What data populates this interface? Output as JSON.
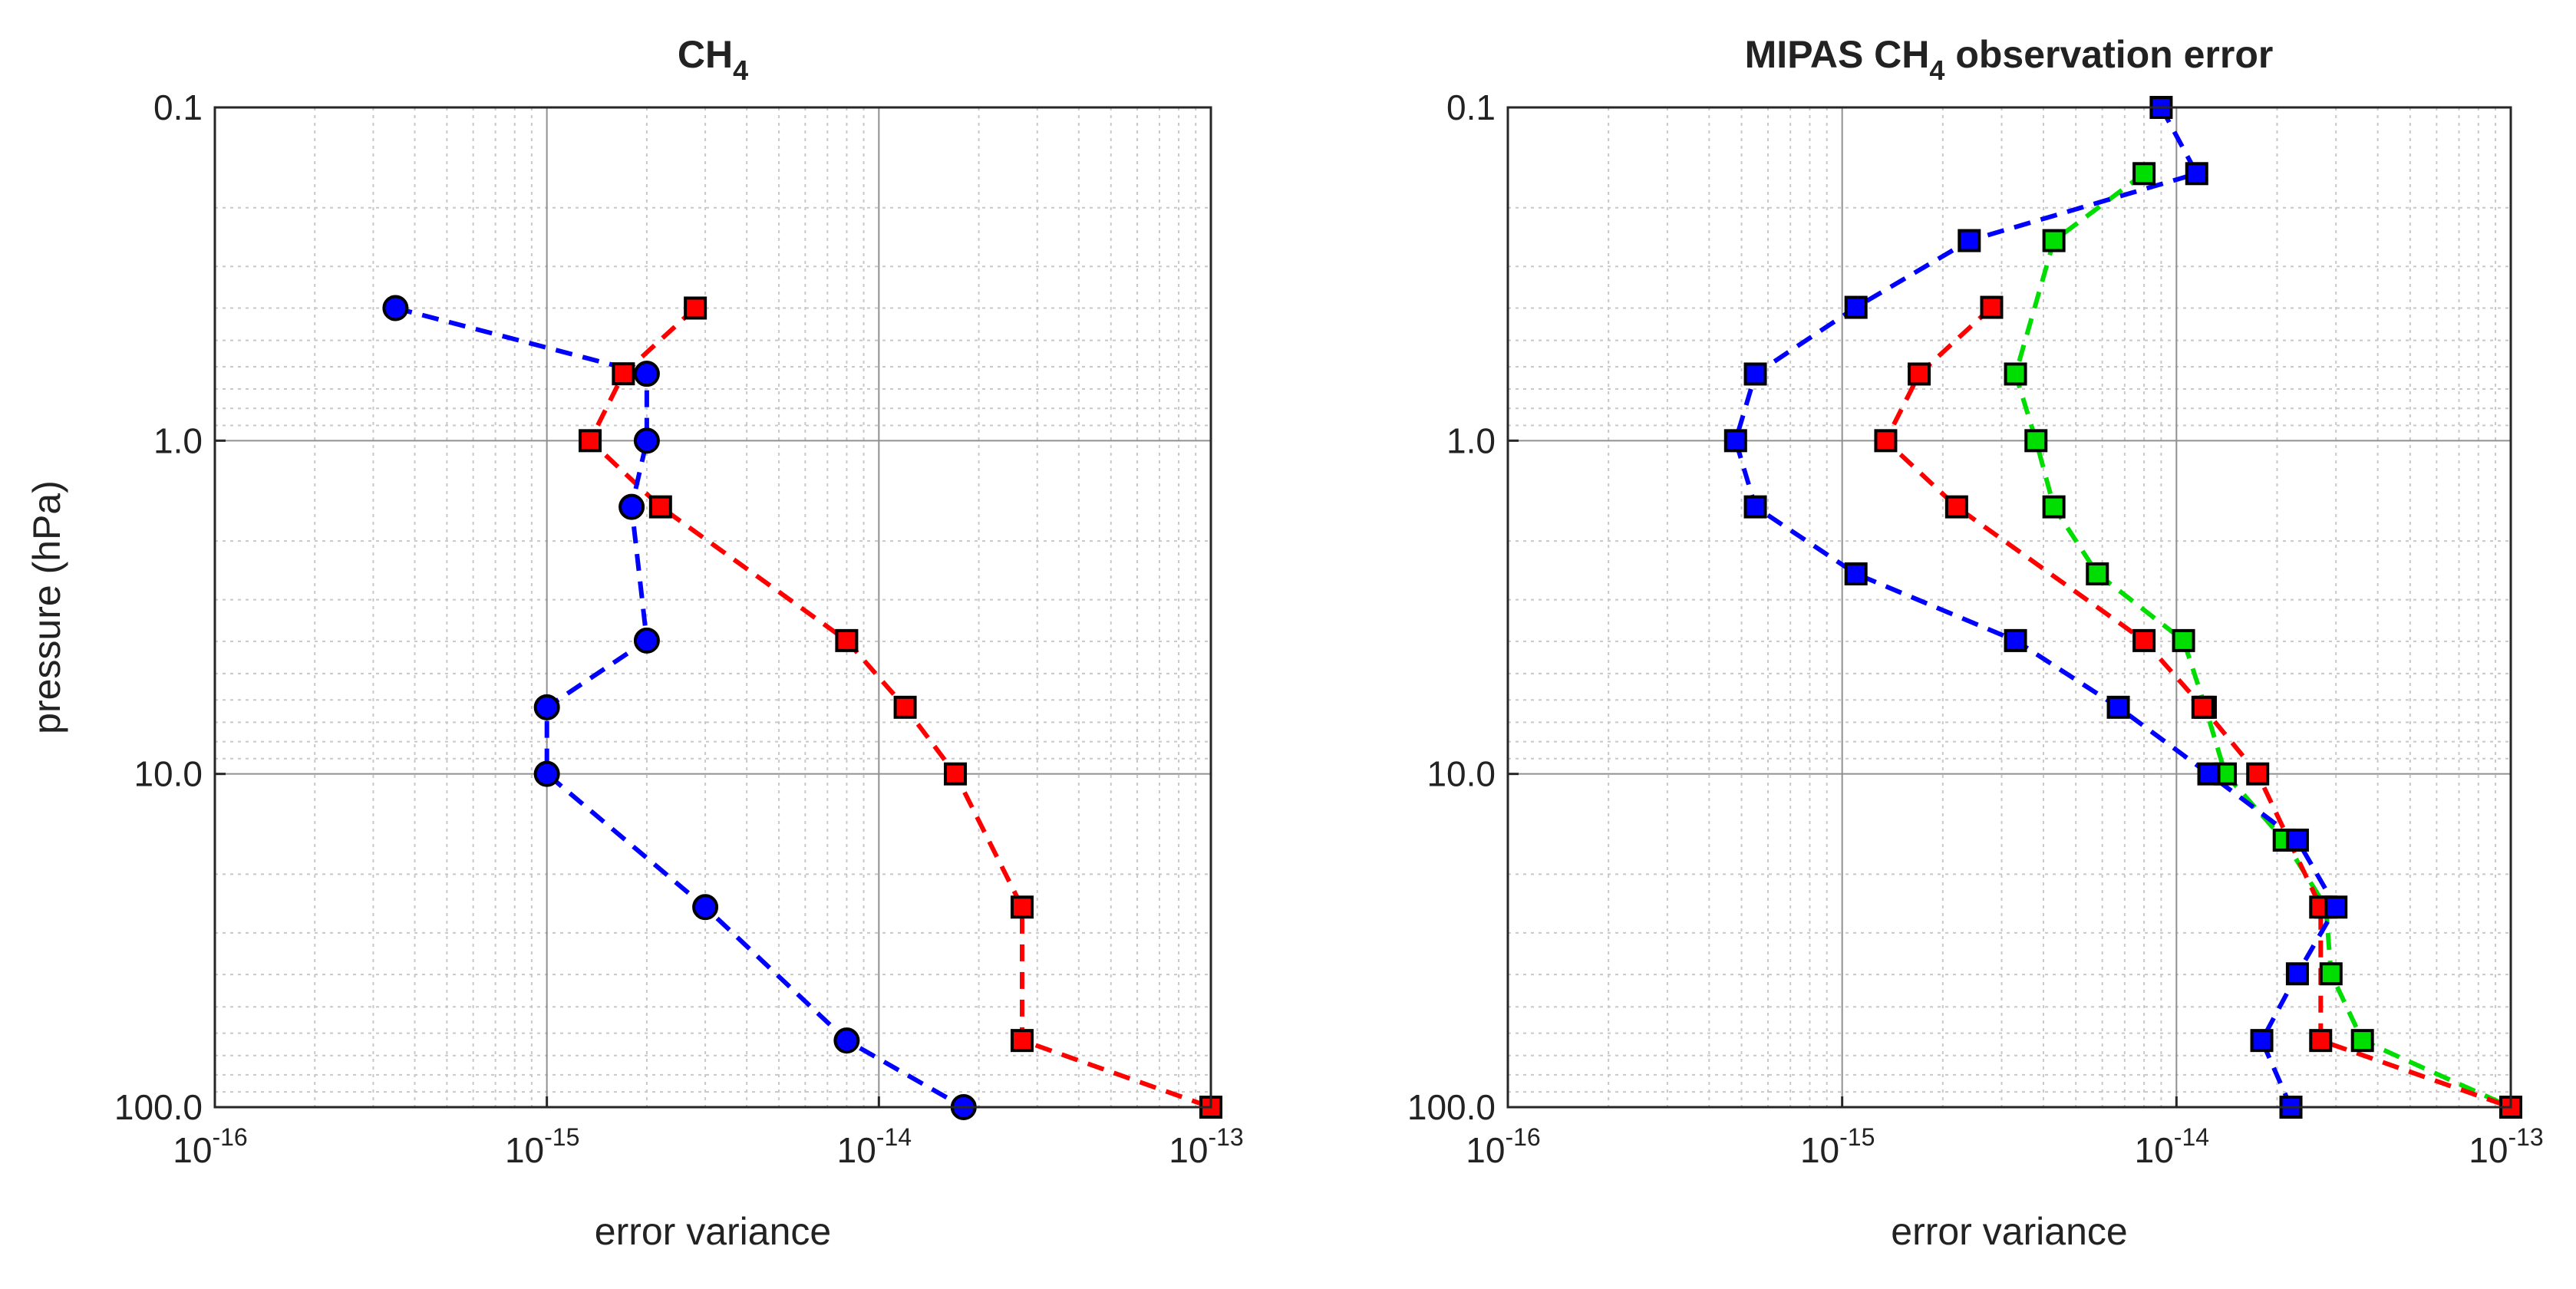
{
  "chart_data": [
    {
      "type": "line",
      "title": "CH",
      "title_sub": "4",
      "xlabel": "error variance",
      "ylabel": "pressure (hPa)",
      "x_scale": "log",
      "y_scale": "log",
      "y_reversed": true,
      "xlim": [
        1e-16,
        1e-13
      ],
      "ylim": [
        0.1,
        100
      ],
      "x_ticks": [
        {
          "value": 1e-16,
          "base": "10",
          "exp": "-16"
        },
        {
          "value": 1e-15,
          "base": "10",
          "exp": "-15"
        },
        {
          "value": 1e-14,
          "base": "10",
          "exp": "-14"
        },
        {
          "value": 1e-13,
          "base": "10",
          "exp": "-13"
        }
      ],
      "y_ticks": [
        {
          "value": 0.1,
          "label": "0.1"
        },
        {
          "value": 1,
          "label": "1.0"
        },
        {
          "value": 10,
          "label": "10.0"
        },
        {
          "value": 100,
          "label": "100.0"
        }
      ],
      "grid": true,
      "series": [
        {
          "color": "#ff0000",
          "marker": "square",
          "points": [
            {
              "x": 2.8e-15,
              "y": 0.4
            },
            {
              "x": 1.7e-15,
              "y": 0.63
            },
            {
              "x": 1.35e-15,
              "y": 1.0
            },
            {
              "x": 2.2e-15,
              "y": 1.58
            },
            {
              "x": 8e-15,
              "y": 3.98
            },
            {
              "x": 1.2e-14,
              "y": 6.31
            },
            {
              "x": 1.7e-14,
              "y": 10.0
            },
            {
              "x": 2.7e-14,
              "y": 25.1
            },
            {
              "x": 2.7e-14,
              "y": 63.1
            },
            {
              "x": 1e-13,
              "y": 100.0
            }
          ]
        },
        {
          "color": "#0000ff",
          "marker": "circle",
          "points": [
            {
              "x": 3.5e-16,
              "y": 0.4
            },
            {
              "x": 2e-15,
              "y": 0.63
            },
            {
              "x": 2e-15,
              "y": 1.0
            },
            {
              "x": 1.8e-15,
              "y": 1.58
            },
            {
              "x": 2e-15,
              "y": 3.98
            },
            {
              "x": 1e-15,
              "y": 6.31
            },
            {
              "x": 1e-15,
              "y": 10.0
            },
            {
              "x": 3e-15,
              "y": 25.1
            },
            {
              "x": 8e-15,
              "y": 63.1
            },
            {
              "x": 1.8e-14,
              "y": 100.0
            }
          ]
        }
      ]
    },
    {
      "type": "line",
      "title": "MIPAS CH",
      "title_sub": "4",
      "title_rest": " observation error",
      "xlabel": "error variance",
      "ylabel": "",
      "x_scale": "log",
      "y_scale": "log",
      "y_reversed": true,
      "xlim": [
        1e-16,
        1e-13
      ],
      "ylim": [
        0.1,
        100
      ],
      "x_ticks": [
        {
          "value": 1e-16,
          "base": "10",
          "exp": "-16"
        },
        {
          "value": 1e-15,
          "base": "10",
          "exp": "-15"
        },
        {
          "value": 1e-14,
          "base": "10",
          "exp": "-14"
        },
        {
          "value": 1e-13,
          "base": "10",
          "exp": "-13"
        }
      ],
      "y_ticks": [
        {
          "value": 0.1,
          "label": "0.1"
        },
        {
          "value": 1,
          "label": "1.0"
        },
        {
          "value": 10,
          "label": "10.0"
        },
        {
          "value": 100,
          "label": "100.0"
        }
      ],
      "grid": true,
      "series": [
        {
          "color": "#00dd00",
          "marker": "square",
          "points": [
            {
              "x": 8e-15,
              "y": 0.158
            },
            {
              "x": 4.3e-15,
              "y": 0.251
            },
            {
              "x": 3.3e-15,
              "y": 0.631
            },
            {
              "x": 3.8e-15,
              "y": 1.0
            },
            {
              "x": 4.3e-15,
              "y": 1.58
            },
            {
              "x": 5.8e-15,
              "y": 2.51
            },
            {
              "x": 1.05e-14,
              "y": 3.98
            },
            {
              "x": 1.22e-14,
              "y": 6.31
            },
            {
              "x": 1.4e-14,
              "y": 10.0
            },
            {
              "x": 2.1e-14,
              "y": 15.8
            },
            {
              "x": 2.8e-14,
              "y": 25.1
            },
            {
              "x": 2.9e-14,
              "y": 39.8
            },
            {
              "x": 3.6e-14,
              "y": 63.1
            },
            {
              "x": 1e-13,
              "y": 100.0
            }
          ]
        },
        {
          "color": "#ff0000",
          "marker": "square",
          "points": [
            {
              "x": 2.8e-15,
              "y": 0.398
            },
            {
              "x": 1.7e-15,
              "y": 0.631
            },
            {
              "x": 1.35e-15,
              "y": 1.0
            },
            {
              "x": 2.2e-15,
              "y": 1.58
            },
            {
              "x": 8e-15,
              "y": 3.98
            },
            {
              "x": 1.2e-14,
              "y": 6.31
            },
            {
              "x": 1.75e-14,
              "y": 10.0
            },
            {
              "x": 2.7e-14,
              "y": 25.1
            },
            {
              "x": 2.7e-14,
              "y": 63.1
            },
            {
              "x": 1e-13,
              "y": 100.0
            }
          ]
        },
        {
          "color": "#0000ff",
          "marker": "square",
          "points": [
            {
              "x": 9e-15,
              "y": 0.1
            },
            {
              "x": 1.15e-14,
              "y": 0.158
            },
            {
              "x": 2.4e-15,
              "y": 0.251
            },
            {
              "x": 1.1e-15,
              "y": 0.398
            },
            {
              "x": 5.5e-16,
              "y": 0.631
            },
            {
              "x": 4.8e-16,
              "y": 1.0
            },
            {
              "x": 5.5e-16,
              "y": 1.58
            },
            {
              "x": 1.1e-15,
              "y": 2.51
            },
            {
              "x": 3.3e-15,
              "y": 3.98
            },
            {
              "x": 6.7e-15,
              "y": 6.31
            },
            {
              "x": 1.25e-14,
              "y": 10.0
            },
            {
              "x": 2.3e-14,
              "y": 15.8
            },
            {
              "x": 3e-14,
              "y": 25.1
            },
            {
              "x": 2.3e-14,
              "y": 39.8
            },
            {
              "x": 1.8e-14,
              "y": 63.1
            },
            {
              "x": 2.2e-14,
              "y": 100.0
            }
          ]
        }
      ]
    }
  ]
}
